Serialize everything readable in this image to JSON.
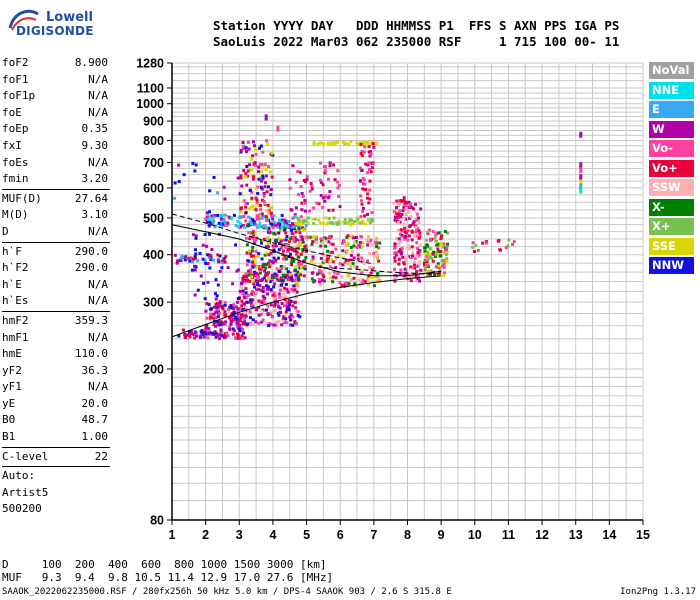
{
  "logo": {
    "line1": "Lowell",
    "line2": "DIGISONDE"
  },
  "header": {
    "labels": "Station YYYY DAY   DDD HHMMSS P1  FFS S AXN PPS IGA PS",
    "values": "SaoLuis 2022 Mar03 062 235000 RSF     1 715 100 00- 11"
  },
  "params": [
    {
      "name": "foF2",
      "value": "8.900"
    },
    {
      "name": "foF1",
      "value": "N/A"
    },
    {
      "name": "foF1p",
      "value": "N/A"
    },
    {
      "name": "foE",
      "value": "N/A"
    },
    {
      "name": "foEp",
      "value": "0.35"
    },
    {
      "name": "fxI",
      "value": "9.30"
    },
    {
      "name": "foEs",
      "value": "N/A"
    },
    {
      "name": "fmin",
      "value": "3.20"
    },
    {
      "sep": true
    },
    {
      "name": "MUF(D)",
      "value": "27.64"
    },
    {
      "name": "M(D)",
      "value": "3.10"
    },
    {
      "name": "D",
      "value": "N/A"
    },
    {
      "sep": true
    },
    {
      "name": "h`F",
      "value": "290.0"
    },
    {
      "name": "h`F2",
      "value": "290.0"
    },
    {
      "name": "h`E",
      "value": "N/A"
    },
    {
      "name": "h`Es",
      "value": "N/A"
    },
    {
      "sep": true
    },
    {
      "name": "hmF2",
      "value": "359.3"
    },
    {
      "name": "hmF1",
      "value": "N/A"
    },
    {
      "name": "hmE",
      "value": "110.0"
    },
    {
      "name": "yF2",
      "value": "36.3"
    },
    {
      "name": "yF1",
      "value": "N/A"
    },
    {
      "name": "yE",
      "value": "20.0"
    },
    {
      "name": "B0",
      "value": "48.7"
    },
    {
      "name": "B1",
      "value": "1.00"
    },
    {
      "sep": true
    },
    {
      "name": "C-level",
      "value": "22"
    },
    {
      "sep": true
    },
    {
      "name": "Auto:",
      "value": ""
    },
    {
      "name": "Artist5",
      "value": ""
    },
    {
      "name": "500200",
      "value": ""
    }
  ],
  "legend": [
    {
      "label": "NoVal",
      "color": "#a0a0a0"
    },
    {
      "label": "NNE",
      "color": "#00e0e8"
    },
    {
      "label": "E",
      "color": "#3aa8f0"
    },
    {
      "label": "W",
      "color": "#b000a8"
    },
    {
      "label": "Vo-",
      "color": "#ff40a0"
    },
    {
      "label": "Vo+",
      "color": "#e8003c"
    },
    {
      "label": "SSW",
      "color": "#ffb0b0"
    },
    {
      "label": "X-",
      "color": "#008000"
    },
    {
      "label": "X+",
      "color": "#78c050"
    },
    {
      "label": "SSE",
      "color": "#d8d800"
    },
    {
      "label": "NNW",
      "color": "#1010e0"
    }
  ],
  "chart_data": {
    "type": "scatter",
    "title": "",
    "xlabel": "",
    "ylabel": "",
    "xlim": [
      1,
      15
    ],
    "ylim": [
      80,
      1280
    ],
    "y_scale": "log",
    "grid": true,
    "x_ticks": [
      "1",
      "2",
      "3",
      "4",
      "5",
      "6",
      "7",
      "8",
      "9",
      "10",
      "11",
      "12",
      "13",
      "14",
      "15"
    ],
    "y_ticks": [
      {
        "v": 80,
        "label": "80"
      },
      {
        "v": 200,
        "label": "200"
      },
      {
        "v": 300,
        "label": "300"
      },
      {
        "v": 400,
        "label": "400"
      },
      {
        "v": 500,
        "label": "500"
      },
      {
        "v": 600,
        "label": "600"
      },
      {
        "v": 700,
        "label": "700"
      },
      {
        "v": 800,
        "label": "800"
      },
      {
        "v": 900,
        "label": "900"
      },
      {
        "v": 1000,
        "label": "1000"
      },
      {
        "v": 1100,
        "label": "1100"
      },
      {
        "v": 1280,
        "label": "1280"
      }
    ],
    "y_grid_values": [
      90,
      100,
      110,
      120,
      130,
      140,
      150,
      160,
      170,
      180,
      190,
      200,
      220,
      240,
      260,
      280,
      300,
      320,
      340,
      360,
      380,
      400,
      420,
      440,
      460,
      480,
      500,
      525,
      550,
      575,
      600,
      625,
      650,
      675,
      700,
      725,
      750,
      775,
      800,
      825,
      850,
      875,
      900,
      925,
      950,
      975,
      1000,
      1033,
      1066,
      1100,
      1150,
      1200,
      1250,
      1280
    ],
    "echo_clusters": [
      {
        "x": [
          1.2,
          2.0
        ],
        "y": [
          240,
          255
        ],
        "n": 30,
        "colors": [
          "#1010e0",
          "#b000a8",
          "#e8003c"
        ]
      },
      {
        "x": [
          2.0,
          3.2
        ],
        "y": [
          240,
          300
        ],
        "n": 180,
        "colors": [
          "#1010e0",
          "#b000a8",
          "#e8003c",
          "#ff40a0"
        ]
      },
      {
        "x": [
          3.0,
          4.8
        ],
        "y": [
          260,
          360
        ],
        "n": 260,
        "colors": [
          "#b000a8",
          "#e8003c",
          "#ff40a0",
          "#1010e0",
          "#ffb0b0"
        ]
      },
      {
        "x": [
          3.2,
          5.0
        ],
        "y": [
          340,
          480
        ],
        "n": 260,
        "colors": [
          "#b000a8",
          "#e8003c",
          "#ff40a0",
          "#1010e0",
          "#008000",
          "#d8d800"
        ]
      },
      {
        "x": [
          4.5,
          7.2
        ],
        "y": [
          330,
          450
        ],
        "n": 240,
        "colors": [
          "#ff40a0",
          "#e8003c",
          "#ffb0b0",
          "#d8d800",
          "#008000",
          "#b000a8"
        ]
      },
      {
        "x": [
          2.0,
          5.0
        ],
        "y": [
          470,
          510
        ],
        "n": 140,
        "colors": [
          "#b000a8",
          "#3aa8f0",
          "#1010e0",
          "#ff40a0",
          "#00e0e8"
        ]
      },
      {
        "x": [
          4.5,
          7.0
        ],
        "y": [
          480,
          500
        ],
        "n": 60,
        "colors": [
          "#d8d800",
          "#78c050"
        ]
      },
      {
        "x": [
          3.0,
          4.0
        ],
        "y": [
          500,
          800
        ],
        "n": 120,
        "colors": [
          "#b000a8",
          "#ff40a0",
          "#e8003c",
          "#1010e0",
          "#d8d800"
        ]
      },
      {
        "x": [
          4.5,
          6.0
        ],
        "y": [
          520,
          700
        ],
        "n": 60,
        "colors": [
          "#b000a8",
          "#e8003c",
          "#ff40a0"
        ]
      },
      {
        "x": [
          5.2,
          7.1
        ],
        "y": [
          780,
          795
        ],
        "n": 40,
        "colors": [
          "#d8d800"
        ]
      },
      {
        "x": [
          6.6,
          7.0
        ],
        "y": [
          500,
          790
        ],
        "n": 50,
        "colors": [
          "#e8003c",
          "#ff40a0",
          "#b000a8"
        ]
      },
      {
        "x": [
          7.6,
          8.4
        ],
        "y": [
          340,
          560
        ],
        "n": 200,
        "colors": [
          "#ff40a0",
          "#e8003c",
          "#ffb0b0",
          "#b000a8"
        ]
      },
      {
        "x": [
          8.5,
          9.2
        ],
        "y": [
          350,
          470
        ],
        "n": 110,
        "colors": [
          "#ff40a0",
          "#008000",
          "#e8003c",
          "#78c050",
          "#d8d800"
        ]
      },
      {
        "x": [
          9.9,
          11.2
        ],
        "y": [
          405,
          440
        ],
        "n": 18,
        "colors": [
          "#ff40a0",
          "#78c050",
          "#e8003c"
        ]
      },
      {
        "x": [
          1.1,
          2.6
        ],
        "y": [
          380,
          400
        ],
        "n": 40,
        "colors": [
          "#1010e0",
          "#3aa8f0",
          "#b000a8",
          "#e8003c"
        ]
      },
      {
        "x": [
          1.6,
          3.0
        ],
        "y": [
          300,
          460
        ],
        "n": 40,
        "colors": [
          "#1010e0",
          "#b000a8"
        ]
      },
      {
        "x": [
          1.0,
          3.0
        ],
        "y": [
          500,
          700
        ],
        "n": 16,
        "colors": [
          "#1010e0",
          "#b000a8",
          "#3aa8f0"
        ]
      }
    ],
    "echo_points": [
      {
        "x": 13.15,
        "y": 828,
        "color": "#b000a8"
      },
      {
        "x": 13.15,
        "y": 688,
        "color": "#b000a8"
      },
      {
        "x": 13.15,
        "y": 668,
        "color": "#ff40a0"
      },
      {
        "x": 13.15,
        "y": 640,
        "color": "#b000a8"
      },
      {
        "x": 13.15,
        "y": 620,
        "color": "#d8d800"
      },
      {
        "x": 13.15,
        "y": 605,
        "color": "#3aa8f0"
      },
      {
        "x": 13.15,
        "y": 590,
        "color": "#00e0e8"
      },
      {
        "x": 3.8,
        "y": 920,
        "color": "#b000a8"
      },
      {
        "x": 4.15,
        "y": 860,
        "color": "#ff40a0"
      },
      {
        "x": 7.9,
        "y": 560,
        "color": "#e8003c"
      }
    ],
    "curves": [
      {
        "name": "",
        "style": "solid",
        "points": [
          [
            1.0,
            243
          ],
          [
            2.0,
            262
          ],
          [
            3.0,
            282
          ],
          [
            4.0,
            300
          ],
          [
            5.0,
            316
          ],
          [
            6.0,
            328
          ],
          [
            7.0,
            338
          ],
          [
            8.0,
            346
          ],
          [
            9.0,
            352
          ]
        ]
      },
      {
        "name": "",
        "style": "solid",
        "points": [
          [
            1.0,
            480
          ],
          [
            2.0,
            460
          ],
          [
            3.0,
            440
          ],
          [
            4.0,
            410
          ],
          [
            5.0,
            380
          ],
          [
            6.0,
            360
          ],
          [
            7.0,
            352
          ],
          [
            8.0,
            352
          ],
          [
            9.0,
            362
          ]
        ]
      },
      {
        "name": "",
        "style": "dashed",
        "points": [
          [
            1.0,
            512
          ],
          [
            2.0,
            485
          ],
          [
            3.0,
            455
          ],
          [
            4.0,
            430
          ],
          [
            5.0,
            410
          ],
          [
            6.0,
            392
          ],
          [
            7.0,
            378
          ]
        ]
      },
      {
        "name": "",
        "style": "dashed",
        "points": [
          [
            5.5,
            370
          ],
          [
            6.5,
            366
          ],
          [
            7.5,
            360
          ],
          [
            8.5,
            356
          ],
          [
            9.0,
            356
          ]
        ]
      }
    ]
  },
  "footer": {
    "d_row": "D     100  200  400  600  800 1000 1500 3000 [km]",
    "muf_row": "MUF   9.3  9.4  9.8 10.5 11.4 12.9 17.0 27.6 [MHz]",
    "info": "SAAOK_2022062235000.RSF / 280fx256h 50 kHz 5.0 km / DPS-4 SAAOK 903 / 2.6 S 315.8 E",
    "version": "Ion2Png 1.3.17"
  }
}
